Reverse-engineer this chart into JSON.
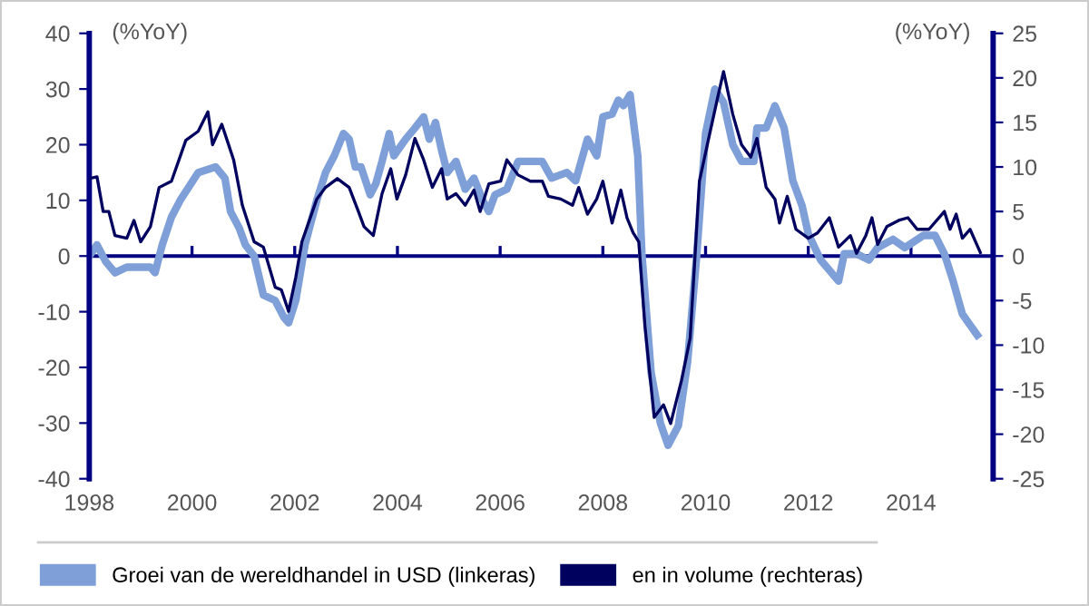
{
  "chart_data": {
    "type": "line",
    "ylabel": "(%YoY)",
    "y2label": "(%YoY)",
    "xlim": [
      1998,
      2015.6
    ],
    "xticks": [
      1998,
      2000,
      2002,
      2004,
      2006,
      2008,
      2010,
      2012,
      2014
    ],
    "ylim": [
      -40,
      40
    ],
    "yticks": [
      -40,
      -30,
      -20,
      -10,
      0,
      10,
      20,
      30,
      40
    ],
    "y2lim": [
      -25,
      25
    ],
    "y2ticks": [
      -25,
      -20,
      -15,
      -10,
      -5,
      0,
      5,
      10,
      15,
      20,
      25
    ],
    "legend": "bottom",
    "grid": false,
    "ref_lines": [
      {
        "axis": "y",
        "value": 0,
        "color": "#000080"
      }
    ],
    "series": [
      {
        "name": "Groei van de wereldhandel in USD (linkeras)",
        "color": "#7f9fd8",
        "axis": "y",
        "x": [
          1998.0,
          1998.15,
          1998.32,
          1998.5,
          1998.73,
          1999.19,
          1999.28,
          1999.42,
          1999.6,
          1999.77,
          2000.12,
          2000.46,
          2000.64,
          2000.75,
          2000.92,
          2001.04,
          2001.21,
          2001.39,
          2001.62,
          2001.79,
          2001.88,
          2002.02,
          2002.2,
          2002.43,
          2002.6,
          2002.77,
          2002.95,
          2003.06,
          2003.18,
          2003.29,
          2003.47,
          2003.58,
          2003.7,
          2003.84,
          2003.93,
          2004.16,
          2004.34,
          2004.51,
          2004.62,
          2004.74,
          2004.86,
          2004.97,
          2005.14,
          2005.32,
          2005.49,
          2005.66,
          2005.78,
          2005.9,
          2006.13,
          2006.35,
          2006.59,
          2006.82,
          2007.0,
          2007.3,
          2007.47,
          2007.7,
          2007.88,
          2008.0,
          2008.18,
          2008.3,
          2008.4,
          2008.53,
          2008.68,
          2008.76,
          2008.94,
          2009.12,
          2009.27,
          2009.47,
          2009.65,
          2009.82,
          2010.0,
          2010.18,
          2010.35,
          2010.53,
          2010.7,
          2010.94,
          2011.0,
          2011.18,
          2011.35,
          2011.53,
          2011.7,
          2011.88,
          2012.0,
          2012.24,
          2012.59,
          2012.7,
          2012.94,
          2013.18,
          2013.35,
          2013.65,
          2013.88,
          2014.24,
          2014.47,
          2014.65,
          2014.82,
          2015.0,
          2015.12,
          2015.29
        ],
        "values": [
          0,
          2,
          -1,
          -3,
          -2,
          -2,
          -3,
          2,
          7,
          10,
          15,
          16,
          14,
          8,
          5,
          2,
          0,
          -7,
          -8,
          -11,
          -12,
          -8,
          2,
          10,
          15,
          18,
          22,
          21,
          16,
          16,
          11,
          13,
          17,
          22,
          18,
          21,
          23,
          25,
          21,
          24,
          19,
          15,
          17,
          12,
          14,
          10,
          8,
          11,
          12,
          17,
          17,
          17,
          14,
          15,
          13.5,
          21,
          18,
          25,
          25.5,
          28,
          27,
          29,
          18,
          0.4,
          -21,
          -30,
          -34,
          -30.5,
          -19,
          -0.7,
          22,
          30,
          27.6,
          20,
          17,
          17,
          23,
          23,
          27,
          23,
          13.5,
          9,
          4,
          -0.7,
          -4.5,
          0.4,
          0.4,
          -0.7,
          1.5,
          3,
          1.5,
          3.7,
          3.7,
          0.4,
          -4.5,
          -10.4,
          -12,
          -14.2
        ]
      },
      {
        "name": "en in volume (rechteras)",
        "color": "#00005e",
        "axis": "y2",
        "x": [
          1998.0,
          1998.15,
          1998.27,
          1998.38,
          1998.5,
          1998.73,
          1998.87,
          1999.0,
          1999.19,
          1999.36,
          1999.6,
          1999.88,
          2000.12,
          2000.31,
          2000.4,
          2000.58,
          2000.81,
          2000.98,
          2001.21,
          2001.39,
          2001.62,
          2001.74,
          2001.88,
          2002.02,
          2002.14,
          2002.43,
          2002.6,
          2002.83,
          2003.06,
          2003.24,
          2003.35,
          2003.53,
          2003.7,
          2003.87,
          2003.99,
          2004.16,
          2004.34,
          2004.51,
          2004.68,
          2004.86,
          2004.97,
          2005.14,
          2005.32,
          2005.49,
          2005.61,
          2005.78,
          2006.01,
          2006.13,
          2006.35,
          2006.59,
          2006.82,
          2006.94,
          2007.18,
          2007.41,
          2007.53,
          2007.7,
          2007.88,
          2008.0,
          2008.18,
          2008.35,
          2008.47,
          2008.59,
          2008.7,
          2008.82,
          2009.0,
          2009.18,
          2009.32,
          2009.53,
          2009.7,
          2009.88,
          2010.06,
          2010.24,
          2010.35,
          2010.53,
          2010.7,
          2010.88,
          2011.0,
          2011.18,
          2011.35,
          2011.44,
          2011.59,
          2011.76,
          2012.0,
          2012.18,
          2012.41,
          2012.59,
          2012.82,
          2012.94,
          2013.12,
          2013.24,
          2013.35,
          2013.53,
          2013.76,
          2013.94,
          2014.12,
          2014.35,
          2014.65,
          2014.76,
          2014.88,
          2015.0,
          2015.15,
          2015.35
        ],
        "values": [
          8.7,
          8.9,
          5,
          5,
          2.3,
          2,
          4,
          1.6,
          3.3,
          7.7,
          8.4,
          13,
          14,
          16.2,
          12.5,
          14.8,
          10.8,
          5.7,
          1.6,
          1,
          -3.5,
          -3.8,
          -6.2,
          -2.4,
          1.6,
          6.4,
          7.7,
          8.7,
          7.7,
          5,
          3.3,
          2.3,
          7,
          9.8,
          6.4,
          9.1,
          13.2,
          10.8,
          7.7,
          9.8,
          6.4,
          7,
          5.7,
          7.4,
          5,
          8.1,
          8.4,
          10.8,
          9.1,
          8.4,
          8.4,
          6.7,
          6.4,
          5.7,
          7.7,
          4.7,
          6.4,
          8.4,
          3.7,
          7.4,
          4.3,
          2.6,
          1.6,
          -7.9,
          -18.1,
          -16.7,
          -18.8,
          -14,
          -9.2,
          8.4,
          13.2,
          17.9,
          20.7,
          15.9,
          12.5,
          11.1,
          13.2,
          7.7,
          6.4,
          3.7,
          6.7,
          3,
          2,
          2.6,
          4.3,
          1,
          2.3,
          0.3,
          2.3,
          4.3,
          1.3,
          3.3,
          4,
          4.3,
          3,
          3,
          5,
          3,
          4.7,
          2,
          3,
          0.4
        ]
      }
    ]
  }
}
